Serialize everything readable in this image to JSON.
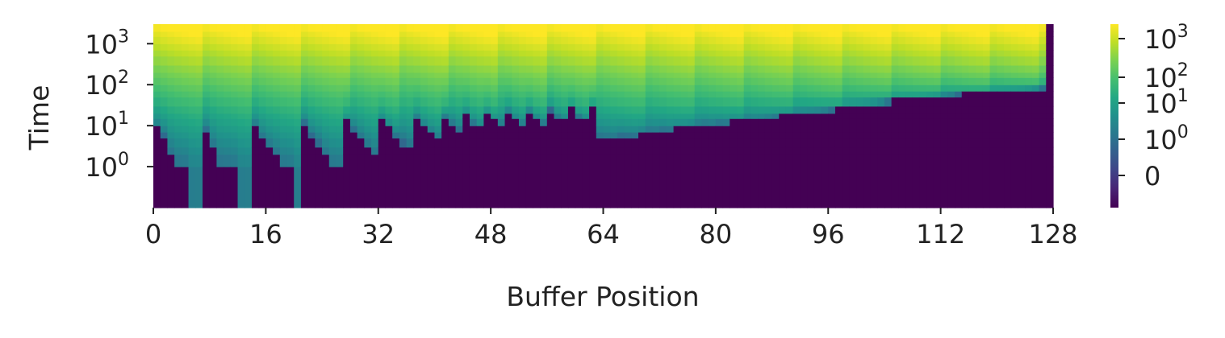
{
  "chart_data": {
    "type": "heatmap",
    "title": "",
    "xlabel": "Buffer Position",
    "ylabel": "Time",
    "x_range": [
      0,
      128
    ],
    "x_ticks": [
      "0",
      "16",
      "32",
      "48",
      "64",
      "80",
      "96",
      "112",
      "128"
    ],
    "y_scale": "symlog",
    "y_range": [
      0,
      3000
    ],
    "y_ticks": [
      {
        "value": 1,
        "base": "10",
        "exp": "0"
      },
      {
        "value": 10,
        "base": "10",
        "exp": "1"
      },
      {
        "value": 100,
        "base": "10",
        "exp": "2"
      },
      {
        "value": 1000,
        "base": "10",
        "exp": "3"
      }
    ],
    "colormap": "viridis",
    "color_scale": "symlog",
    "colorbar_ticks": [
      {
        "label": "0",
        "base": "",
        "exp": ""
      },
      {
        "label": "",
        "base": "10",
        "exp": "0"
      },
      {
        "label": "",
        "base": "10",
        "exp": "1"
      },
      {
        "label": "",
        "base": "10",
        "exp": "2"
      },
      {
        "label": "",
        "base": "10",
        "exp": "3"
      }
    ],
    "arrival_times_by_position": [
      9,
      6,
      2,
      1,
      1,
      0,
      0,
      8,
      3,
      1,
      1,
      1,
      0,
      0,
      10,
      5,
      3,
      2,
      1,
      1,
      0,
      12,
      6,
      4,
      2,
      1,
      1,
      13,
      8,
      5,
      3,
      2,
      14,
      9,
      6,
      4,
      3,
      16,
      10,
      7,
      5,
      17,
      11,
      8,
      19,
      12,
      9,
      20,
      13,
      10,
      22,
      14,
      11,
      23,
      15,
      12,
      25,
      16,
      13,
      26,
      17,
      14,
      28,
      5,
      5,
      5,
      6,
      6,
      6,
      7,
      7,
      7,
      8,
      8,
      9,
      9,
      10,
      10,
      11,
      11,
      12,
      12,
      13,
      13,
      14,
      14,
      15,
      16,
      17,
      18,
      19,
      20,
      21,
      22,
      23,
      24,
      25,
      26,
      28,
      30,
      32,
      34,
      36,
      38,
      40,
      42,
      44,
      46,
      48,
      50,
      52,
      54,
      56,
      58,
      60,
      62,
      64,
      66,
      68,
      70,
      72,
      74,
      76,
      78,
      80,
      82,
      84,
      0
    ],
    "description_note": ""
  }
}
